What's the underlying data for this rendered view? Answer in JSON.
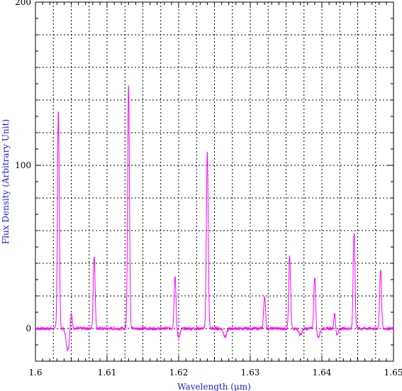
{
  "chart_data": {
    "type": "line",
    "xlabel": "Wavelength (μm)",
    "ylabel": "Flux Density (Arbitrary Unit)",
    "xlim": [
      1.6,
      1.65
    ],
    "ylim": [
      -20,
      200
    ],
    "x_ticks": [
      "1.6",
      "1.61",
      "1.62",
      "1.63",
      "1.64",
      "1.65"
    ],
    "y_ticks": [
      "0",
      "100",
      "200"
    ],
    "grid": true,
    "grid_style": "dotted",
    "line_color": "#ff00ff",
    "baseline": 0,
    "peaks": [
      {
        "x": 1.6032,
        "y": 134
      },
      {
        "x": 1.605,
        "y": 10
      },
      {
        "x": 1.6082,
        "y": 45
      },
      {
        "x": 1.613,
        "y": 149
      },
      {
        "x": 1.6195,
        "y": 33
      },
      {
        "x": 1.624,
        "y": 109
      },
      {
        "x": 1.632,
        "y": 20
      },
      {
        "x": 1.6355,
        "y": 44
      },
      {
        "x": 1.639,
        "y": 32
      },
      {
        "x": 1.6418,
        "y": 12
      },
      {
        "x": 1.6445,
        "y": 59
      },
      {
        "x": 1.6482,
        "y": 36
      }
    ],
    "dips": [
      {
        "x": 1.6045,
        "y": -13
      },
      {
        "x": 1.62,
        "y": -5
      },
      {
        "x": 1.6265,
        "y": -5
      },
      {
        "x": 1.637,
        "y": -4
      },
      {
        "x": 1.6395,
        "y": -5
      },
      {
        "x": 1.642,
        "y": -5
      }
    ]
  }
}
